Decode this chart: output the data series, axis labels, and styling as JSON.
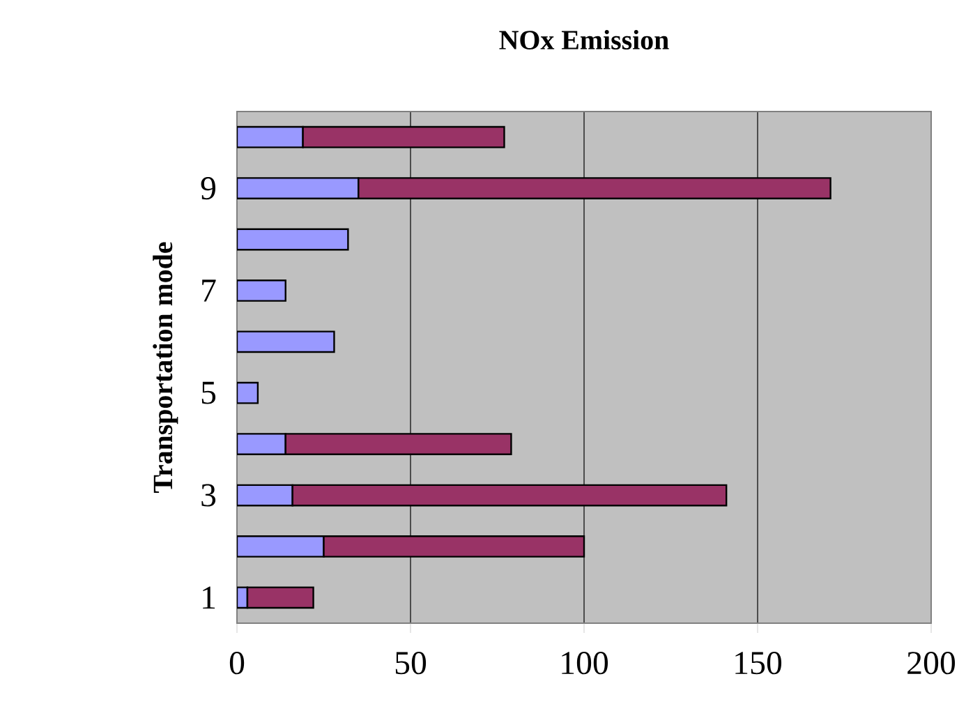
{
  "chart_data": {
    "type": "bar",
    "orientation": "horizontal",
    "stacked": true,
    "title": "NOx Emission",
    "ylabel": "Transportation mode",
    "categories": [
      null,
      "9",
      null,
      "7",
      null,
      "5",
      null,
      "3",
      null,
      "1"
    ],
    "series": [
      {
        "color": "#9999ff",
        "values": [
          19,
          35,
          32,
          14,
          28,
          6,
          14,
          16,
          25,
          3
        ]
      },
      {
        "color": "#993366",
        "values": [
          58,
          136,
          null,
          null,
          null,
          null,
          65,
          125,
          75,
          19
        ]
      }
    ],
    "xlim": [
      0,
      200
    ],
    "xticks": [
      0,
      50,
      100,
      150,
      200
    ],
    "grid": "x"
  }
}
